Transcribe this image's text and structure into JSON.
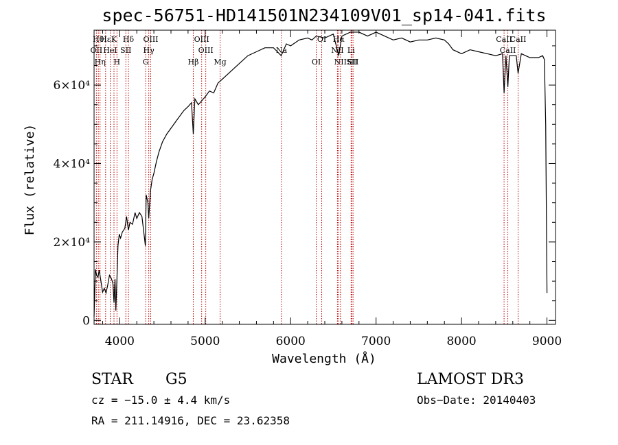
{
  "chart_data": {
    "type": "line",
    "title": "spec-56751-HD141501N234109V01_sp14-041.fits",
    "xlabel": "Wavelength (Å)",
    "ylabel": "Flux (relative)",
    "xlim": [
      3700,
      9100
    ],
    "ylim": [
      -1000,
      74000
    ],
    "x_ticks": [
      {
        "value": 4000,
        "label": "4000"
      },
      {
        "value": 5000,
        "label": "5000"
      },
      {
        "value": 6000,
        "label": "6000"
      },
      {
        "value": 7000,
        "label": "7000"
      },
      {
        "value": 8000,
        "label": "8000"
      },
      {
        "value": 9000,
        "label": "9000"
      }
    ],
    "y_ticks": [
      {
        "value": 0,
        "label": "0"
      },
      {
        "value": 20000,
        "label": "2×10⁴"
      },
      {
        "value": 40000,
        "label": "4×10⁴"
      },
      {
        "value": 60000,
        "label": "6×10⁴"
      }
    ],
    "grid": false,
    "series": [
      {
        "color": "#000000",
        "x": [
          3700,
          3715,
          3730,
          3745,
          3760,
          3780,
          3800,
          3820,
          3840,
          3860,
          3880,
          3900,
          3920,
          3933,
          3945,
          3955,
          3968,
          3980,
          3995,
          4010,
          4030,
          4060,
          4080,
          4102,
          4120,
          4150,
          4180,
          4200,
          4230,
          4260,
          4290,
          4300,
          4310,
          4330,
          4340,
          4360,
          4380,
          4400,
          4430,
          4460,
          4500,
          4550,
          4600,
          4650,
          4700,
          4750,
          4800,
          4840,
          4861,
          4880,
          4920,
          4960,
          5000,
          5050,
          5100,
          5150,
          5200,
          5250,
          5300,
          5400,
          5500,
          5600,
          5700,
          5800,
          5890,
          5950,
          6000,
          6100,
          6200,
          6250,
          6300,
          6400,
          6500,
          6563,
          6600,
          6650,
          6700,
          6800,
          6900,
          7000,
          7100,
          7200,
          7300,
          7400,
          7500,
          7600,
          7700,
          7800,
          7850,
          7900,
          8000,
          8100,
          8200,
          8300,
          8400,
          8480,
          8498,
          8520,
          8542,
          8560,
          8600,
          8640,
          8662,
          8700,
          8750,
          8800,
          8850,
          8900,
          8950,
          8970,
          8985,
          9000
        ],
        "y": [
          1000,
          13000,
          11500,
          11000,
          12800,
          10000,
          7200,
          8200,
          7000,
          9000,
          11500,
          10800,
          9500,
          4500,
          10500,
          2500,
          11000,
          19000,
          22000,
          21000,
          22500,
          23500,
          26500,
          23000,
          25000,
          24500,
          27500,
          26000,
          27500,
          26500,
          21000,
          19000,
          32000,
          30000,
          26000,
          33000,
          36000,
          37500,
          40500,
          43000,
          45500,
          47500,
          49000,
          50500,
          52000,
          53500,
          54500,
          55500,
          47500,
          56500,
          55000,
          56000,
          57000,
          58500,
          58000,
          60500,
          61500,
          62500,
          63500,
          65500,
          67500,
          68500,
          69500,
          69500,
          67500,
          70500,
          70000,
          71500,
          72000,
          71500,
          72500,
          72000,
          73000,
          67500,
          72500,
          73000,
          73500,
          73500,
          72500,
          73500,
          72500,
          71500,
          72000,
          71000,
          71500,
          71500,
          72000,
          71500,
          70500,
          69000,
          68000,
          69000,
          68500,
          68000,
          67500,
          68000,
          58000,
          67500,
          59500,
          67500,
          67500,
          67500,
          63000,
          68000,
          67500,
          67000,
          67000,
          67000,
          67500,
          66500,
          50000,
          7000
        ]
      }
    ],
    "spectral_lines": [
      {
        "wavelength": 3727,
        "labels": [
          "OII"
        ]
      },
      {
        "wavelength": 3750,
        "labels": [
          "Hθ"
        ]
      },
      {
        "wavelength": 3770,
        "labels": [
          "Hη"
        ]
      },
      {
        "wavelength": 3835,
        "labels": [
          "Hε"
        ]
      },
      {
        "wavelength": 3889,
        "labels": [
          "HeI"
        ]
      },
      {
        "wavelength": 3933,
        "labels": [
          "K"
        ]
      },
      {
        "wavelength": 3968,
        "labels": [
          "H"
        ]
      },
      {
        "wavelength": 4072,
        "labels": [
          "SII"
        ]
      },
      {
        "wavelength": 4102,
        "labels": [
          "Hδ"
        ]
      },
      {
        "wavelength": 4304,
        "labels": [
          "G"
        ]
      },
      {
        "wavelength": 4340,
        "labels": [
          "Hγ"
        ]
      },
      {
        "wavelength": 4363,
        "labels": [
          "OIII"
        ]
      },
      {
        "wavelength": 4861,
        "labels": [
          "Hβ"
        ]
      },
      {
        "wavelength": 4959,
        "labels": [
          "OIII"
        ]
      },
      {
        "wavelength": 5007,
        "labels": [
          "OIII"
        ]
      },
      {
        "wavelength": 5175,
        "labels": [
          "Mg"
        ]
      },
      {
        "wavelength": 5893,
        "labels": [
          "Na"
        ]
      },
      {
        "wavelength": 6300,
        "labels": [
          "OI"
        ]
      },
      {
        "wavelength": 6364,
        "labels": [
          "OI"
        ]
      },
      {
        "wavelength": 6548,
        "labels": [
          "NII"
        ]
      },
      {
        "wavelength": 6563,
        "labels": [
          "Hα"
        ]
      },
      {
        "wavelength": 6583,
        "labels": [
          "NII"
        ]
      },
      {
        "wavelength": 6708,
        "labels": [
          "Li"
        ]
      },
      {
        "wavelength": 6717,
        "labels": [
          "SII"
        ]
      },
      {
        "wavelength": 6731,
        "labels": [
          "SII"
        ]
      },
      {
        "wavelength": 8498,
        "labels": [
          "CaII"
        ]
      },
      {
        "wavelength": 8542,
        "labels": [
          "CaII"
        ]
      },
      {
        "wavelength": 8662,
        "labels": [
          "CaII"
        ]
      }
    ],
    "line_color": "#c00000"
  },
  "info": {
    "object_class": "STAR",
    "subclass": "G5",
    "survey": "LAMOST DR3",
    "redshift": "cz = −15.0 ± 4.4 km/s",
    "obs_date": "Obs−Date: 20140403",
    "coords": "RA = 211.14916, DEC =  23.62358"
  }
}
